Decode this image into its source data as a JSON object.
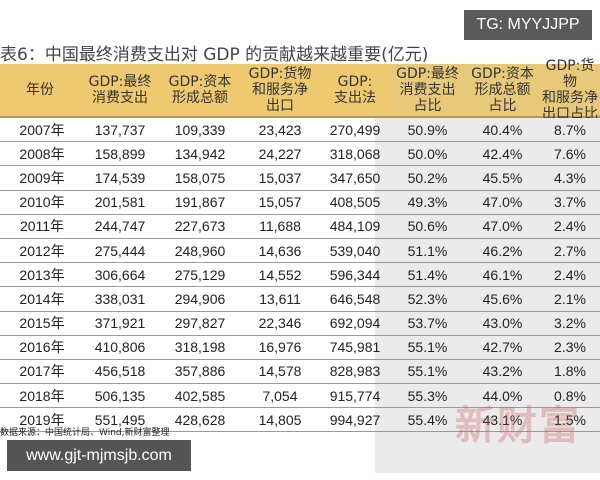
{
  "badge": "TG: MYYJJPP",
  "title": "表6：中国最终消费支出对 GDP 的贡献越来越重要(亿元)",
  "table": {
    "headers": [
      "年份",
      "GDP:最终\n消费支出",
      "GDP:资本\n形成总额",
      "GDP:货物\n和服务净\n出口",
      "GDP:\n支出法",
      "GDP:最终\n消费支出\n占比",
      "GDP:资本\n形成总额\n占比",
      "GDP:货物\n和服务净\n出口占比"
    ],
    "rows": [
      [
        "2007年",
        "137,737",
        "109,339",
        "23,423",
        "270,499",
        "50.9%",
        "40.4%",
        "8.7%"
      ],
      [
        "2008年",
        "158,899",
        "134,942",
        "24,227",
        "318,068",
        "50.0%",
        "42.4%",
        "7.6%"
      ],
      [
        "2009年",
        "174,539",
        "158,075",
        "15,037",
        "347,650",
        "50.2%",
        "45.5%",
        "4.3%"
      ],
      [
        "2010年",
        "201,581",
        "191,867",
        "15,057",
        "408,505",
        "49.3%",
        "47.0%",
        "3.7%"
      ],
      [
        "2011年",
        "244,747",
        "227,673",
        "11,688",
        "484,109",
        "50.6%",
        "47.0%",
        "2.4%"
      ],
      [
        "2012年",
        "275,444",
        "248,960",
        "14,636",
        "539,040",
        "51.1%",
        "46.2%",
        "2.7%"
      ],
      [
        "2013年",
        "306,664",
        "275,129",
        "14,552",
        "596,344",
        "51.4%",
        "46.1%",
        "2.4%"
      ],
      [
        "2014年",
        "338,031",
        "294,906",
        "13,611",
        "646,548",
        "52.3%",
        "45.6%",
        "2.1%"
      ],
      [
        "2015年",
        "371,921",
        "297,827",
        "22,346",
        "692,094",
        "53.7%",
        "43.0%",
        "3.2%"
      ],
      [
        "2016年",
        "410,806",
        "318,198",
        "16,976",
        "745,981",
        "55.1%",
        "42.7%",
        "2.3%"
      ],
      [
        "2017年",
        "456,518",
        "357,886",
        "14,578",
        "828,983",
        "55.1%",
        "43.2%",
        "1.8%"
      ],
      [
        "2018年",
        "506,135",
        "402,585",
        "7,054",
        "915,774",
        "55.3%",
        "44.0%",
        "0.8%"
      ],
      [
        "2019年",
        "551,495",
        "428,628",
        "14,805",
        "994,927",
        "55.4%",
        "43.1%",
        "1.5%"
      ]
    ]
  },
  "source": "数据来源：中国统计局、Wind,新财富整理",
  "url": "www.gjt-mjmsjb.com",
  "watermark": "新财富",
  "colors": {
    "header": "#efc96f",
    "shade": "#ebebeb",
    "badge": "#5a5a5a"
  }
}
